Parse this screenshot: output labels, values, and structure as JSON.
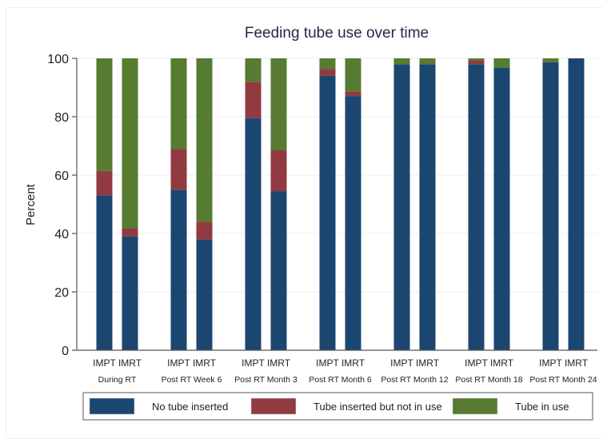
{
  "chart_data": {
    "type": "bar",
    "stacked": true,
    "title": "Feeding tube use over time",
    "xlabel": "",
    "ylabel": "Percent",
    "ylim": [
      0,
      100
    ],
    "yticks": [
      0,
      20,
      40,
      60,
      80,
      100
    ],
    "grid": true,
    "legend_position": "bottom",
    "groups": [
      "During RT",
      "Post RT Week 6",
      "Post RT Month 3",
      "Post RT Month 6",
      "Post RT Month 12",
      "Post RT Month 18",
      "Post RT Month 24"
    ],
    "bar_labels": [
      "IMPT",
      "IMRT"
    ],
    "series": [
      {
        "name": "No tube inserted",
        "color": "#1b4670",
        "values": [
          [
            53,
            39
          ],
          [
            55,
            38
          ],
          [
            79.5,
            54.5
          ],
          [
            94,
            87
          ],
          [
            98,
            98
          ],
          [
            98,
            96.7
          ],
          [
            98.7,
            100
          ]
        ]
      },
      {
        "name": "Tube inserted but not in use",
        "color": "#913a41",
        "values": [
          [
            8.4,
            2.8
          ],
          [
            14,
            6
          ],
          [
            12.5,
            14
          ],
          [
            2.4,
            1.6
          ],
          [
            0,
            0
          ],
          [
            1.3,
            0
          ],
          [
            0,
            0
          ]
        ]
      },
      {
        "name": "Tube in use",
        "color": "#567b31",
        "values": [
          [
            38.6,
            58.2
          ],
          [
            31,
            56
          ],
          [
            8,
            31.5
          ],
          [
            3.6,
            11.4
          ],
          [
            2,
            2
          ],
          [
            0.7,
            3.3
          ],
          [
            1.3,
            0
          ]
        ]
      }
    ]
  }
}
